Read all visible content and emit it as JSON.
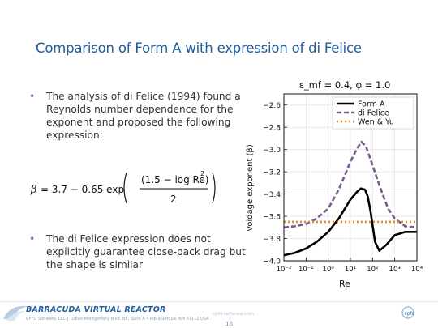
{
  "slide": {
    "title": "Comparison of Form A with expression of di Felice",
    "bullets": [
      "The analysis of di Felice (1994) found a Reynolds number dependence for the exponent and proposed the following expression:",
      "The di Felice expression does not explicitly guarantee close-pack drag but the shape is similar"
    ],
    "bullet_marker": "•"
  },
  "formula": {
    "lhs": "β",
    "equals": "= 3.7 − 0.65 exp",
    "numerator": "(1.5 − log Re)",
    "exponent": "2",
    "denominator": "2"
  },
  "chart_data": {
    "type": "line",
    "title": "ε_mf = 0.4, φ = 1.0",
    "xlabel": "Re",
    "ylabel": "Voidage exponent (β)",
    "x_scale": "log",
    "xlim": [
      0.01,
      10000
    ],
    "ylim": [
      -4.0,
      -2.5
    ],
    "x_ticks": [
      "10⁻²",
      "10⁻¹",
      "10⁰",
      "10¹",
      "10²",
      "10³",
      "10⁴"
    ],
    "x_tick_values": [
      0.01,
      0.1,
      1,
      10,
      100,
      1000,
      10000
    ],
    "y_ticks": [
      "−2.6",
      "−2.8",
      "−3.0",
      "−3.2",
      "−3.4",
      "−3.6",
      "−3.8",
      "−4.0"
    ],
    "y_tick_values": [
      -2.6,
      -2.8,
      -3.0,
      -3.2,
      -3.4,
      -3.6,
      -3.8,
      -4.0
    ],
    "legend_position": "top-right",
    "grid": true,
    "series": [
      {
        "name": "Form A",
        "color": "#000000",
        "style": "solid",
        "x": [
          0.01,
          0.03,
          0.1,
          0.3,
          1,
          3,
          10,
          20,
          30,
          45,
          60,
          80,
          100,
          130,
          200,
          400,
          1000,
          3000,
          10000
        ],
        "y": [
          -3.95,
          -3.93,
          -3.89,
          -3.83,
          -3.74,
          -3.62,
          -3.45,
          -3.38,
          -3.35,
          -3.36,
          -3.42,
          -3.55,
          -3.68,
          -3.83,
          -3.91,
          -3.86,
          -3.77,
          -3.74,
          -3.74
        ]
      },
      {
        "name": "di Felice",
        "color": "#7b5a8e",
        "style": "dashed",
        "x": [
          0.01,
          0.03,
          0.1,
          0.3,
          1,
          3,
          10,
          20,
          31.6,
          50,
          100,
          200,
          500,
          1000,
          3000,
          10000
        ],
        "y": [
          -3.7,
          -3.69,
          -3.67,
          -3.62,
          -3.53,
          -3.36,
          -3.11,
          -2.99,
          -2.93,
          -2.97,
          -3.14,
          -3.32,
          -3.53,
          -3.62,
          -3.69,
          -3.7
        ]
      },
      {
        "name": "Wen & Yu",
        "color": "#e08a2a",
        "style": "dotted",
        "x": [
          0.01,
          10000
        ],
        "y": [
          -3.65,
          -3.65
        ]
      }
    ]
  },
  "footer": {
    "product": "BARRACUDA VIRTUAL REACTOR",
    "address": "CPFD Software, LLC  |  10899 Montgomery Blvd. NE, Suite A  •  Albuquerque, NM 87111 USA",
    "website": "cpfd-software.com",
    "page_number": "16",
    "cpfd_logo": "cpfd"
  }
}
